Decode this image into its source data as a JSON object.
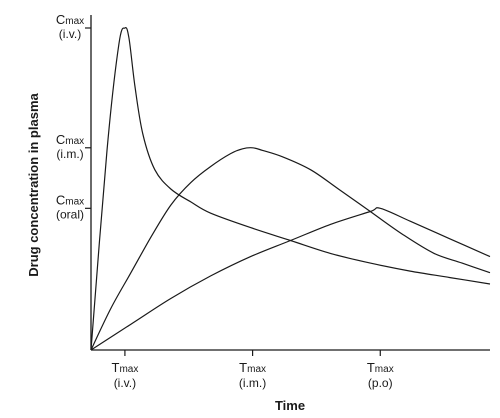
{
  "chart_data": {
    "type": "line",
    "title": "",
    "xlabel": "Time",
    "ylabel": "Drug concentration in plasma",
    "x_ticks": [
      {
        "x": 0.085,
        "main": "T",
        "sub": "max",
        "route": "(i.v.)"
      },
      {
        "x": 0.405,
        "main": "T",
        "sub": "max",
        "route": "(i.m.)"
      },
      {
        "x": 0.725,
        "main": "T",
        "sub": "max",
        "route": "(p.o)"
      }
    ],
    "y_ticks": [
      {
        "y": 1.0,
        "main": "C",
        "sub": "max",
        "route": "(i.v.)"
      },
      {
        "y": 0.628,
        "main": "C",
        "sub": "max",
        "route": "(i.m.)"
      },
      {
        "y": 0.44,
        "main": "C",
        "sub": "max",
        "route": "(oral)"
      }
    ],
    "xlim": [
      0,
      1
    ],
    "ylim": [
      0,
      1
    ],
    "grid": false,
    "legend": "none",
    "series": [
      {
        "id": "iv",
        "points": [
          [
            0,
            0
          ],
          [
            0.04,
            0.62
          ],
          [
            0.07,
            0.95
          ],
          [
            0.085,
            1.0
          ],
          [
            0.095,
            0.97
          ],
          [
            0.11,
            0.82
          ],
          [
            0.13,
            0.67
          ],
          [
            0.16,
            0.56
          ],
          [
            0.2,
            0.5
          ],
          [
            0.25,
            0.46
          ],
          [
            0.3,
            0.425
          ],
          [
            0.4,
            0.38
          ],
          [
            0.5,
            0.34
          ],
          [
            0.6,
            0.3
          ],
          [
            0.7,
            0.27
          ],
          [
            0.8,
            0.245
          ],
          [
            0.9,
            0.225
          ],
          [
            1.0,
            0.205
          ]
        ]
      },
      {
        "id": "im",
        "points": [
          [
            0,
            0
          ],
          [
            0.05,
            0.13
          ],
          [
            0.1,
            0.24
          ],
          [
            0.15,
            0.35
          ],
          [
            0.2,
            0.45
          ],
          [
            0.25,
            0.52
          ],
          [
            0.3,
            0.57
          ],
          [
            0.35,
            0.61
          ],
          [
            0.38,
            0.625
          ],
          [
            0.405,
            0.628
          ],
          [
            0.43,
            0.62
          ],
          [
            0.48,
            0.6
          ],
          [
            0.55,
            0.56
          ],
          [
            0.62,
            0.5
          ],
          [
            0.7,
            0.43
          ],
          [
            0.78,
            0.36
          ],
          [
            0.86,
            0.3
          ],
          [
            0.93,
            0.27
          ],
          [
            1.0,
            0.24
          ]
        ]
      },
      {
        "id": "oral",
        "points": [
          [
            0,
            0
          ],
          [
            0.1,
            0.08
          ],
          [
            0.2,
            0.16
          ],
          [
            0.3,
            0.23
          ],
          [
            0.4,
            0.29
          ],
          [
            0.5,
            0.34
          ],
          [
            0.6,
            0.39
          ],
          [
            0.7,
            0.43
          ],
          [
            0.725,
            0.44
          ],
          [
            0.8,
            0.4
          ],
          [
            0.9,
            0.345
          ],
          [
            1.0,
            0.29
          ]
        ]
      }
    ]
  }
}
